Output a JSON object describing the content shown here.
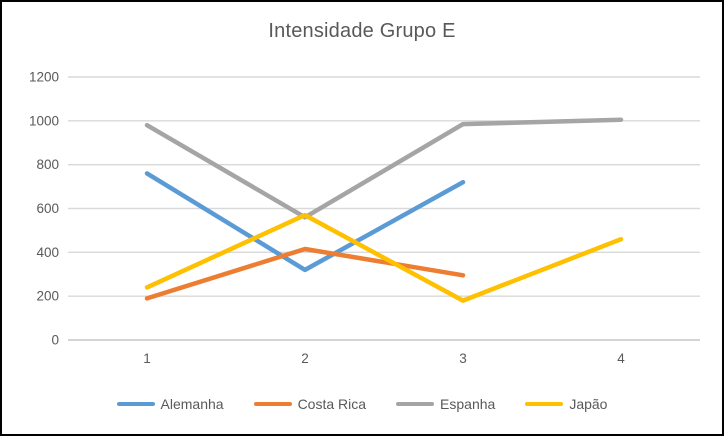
{
  "window": {
    "background": "#ffffff",
    "border_color": "#000000"
  },
  "chart_data": {
    "type": "line",
    "title": "Intensidade Grupo E",
    "title_color": "#595959",
    "categories": [
      "1",
      "2",
      "3",
      "4"
    ],
    "series": [
      {
        "name": "Alemanha",
        "color": "#5B9BD5",
        "values": [
          760,
          320,
          720,
          null
        ]
      },
      {
        "name": "Costa Rica",
        "color": "#ED7D31",
        "values": [
          190,
          415,
          295,
          null
        ]
      },
      {
        "name": "Espanha",
        "color": "#A5A5A5",
        "values": [
          980,
          560,
          985,
          1005
        ]
      },
      {
        "name": "Japão",
        "color": "#FFC000",
        "values": [
          240,
          570,
          180,
          460
        ]
      }
    ],
    "xlabel": "",
    "ylabel": "",
    "ylim": [
      0,
      1200
    ],
    "yticks": [
      0,
      200,
      400,
      600,
      800,
      1000,
      1200
    ],
    "grid": "horizontal",
    "gridline_color": "#D9D9D9",
    "axis_line_color": "#C6C6C6",
    "axis_label_color": "#595959",
    "legend_position": "bottom"
  }
}
